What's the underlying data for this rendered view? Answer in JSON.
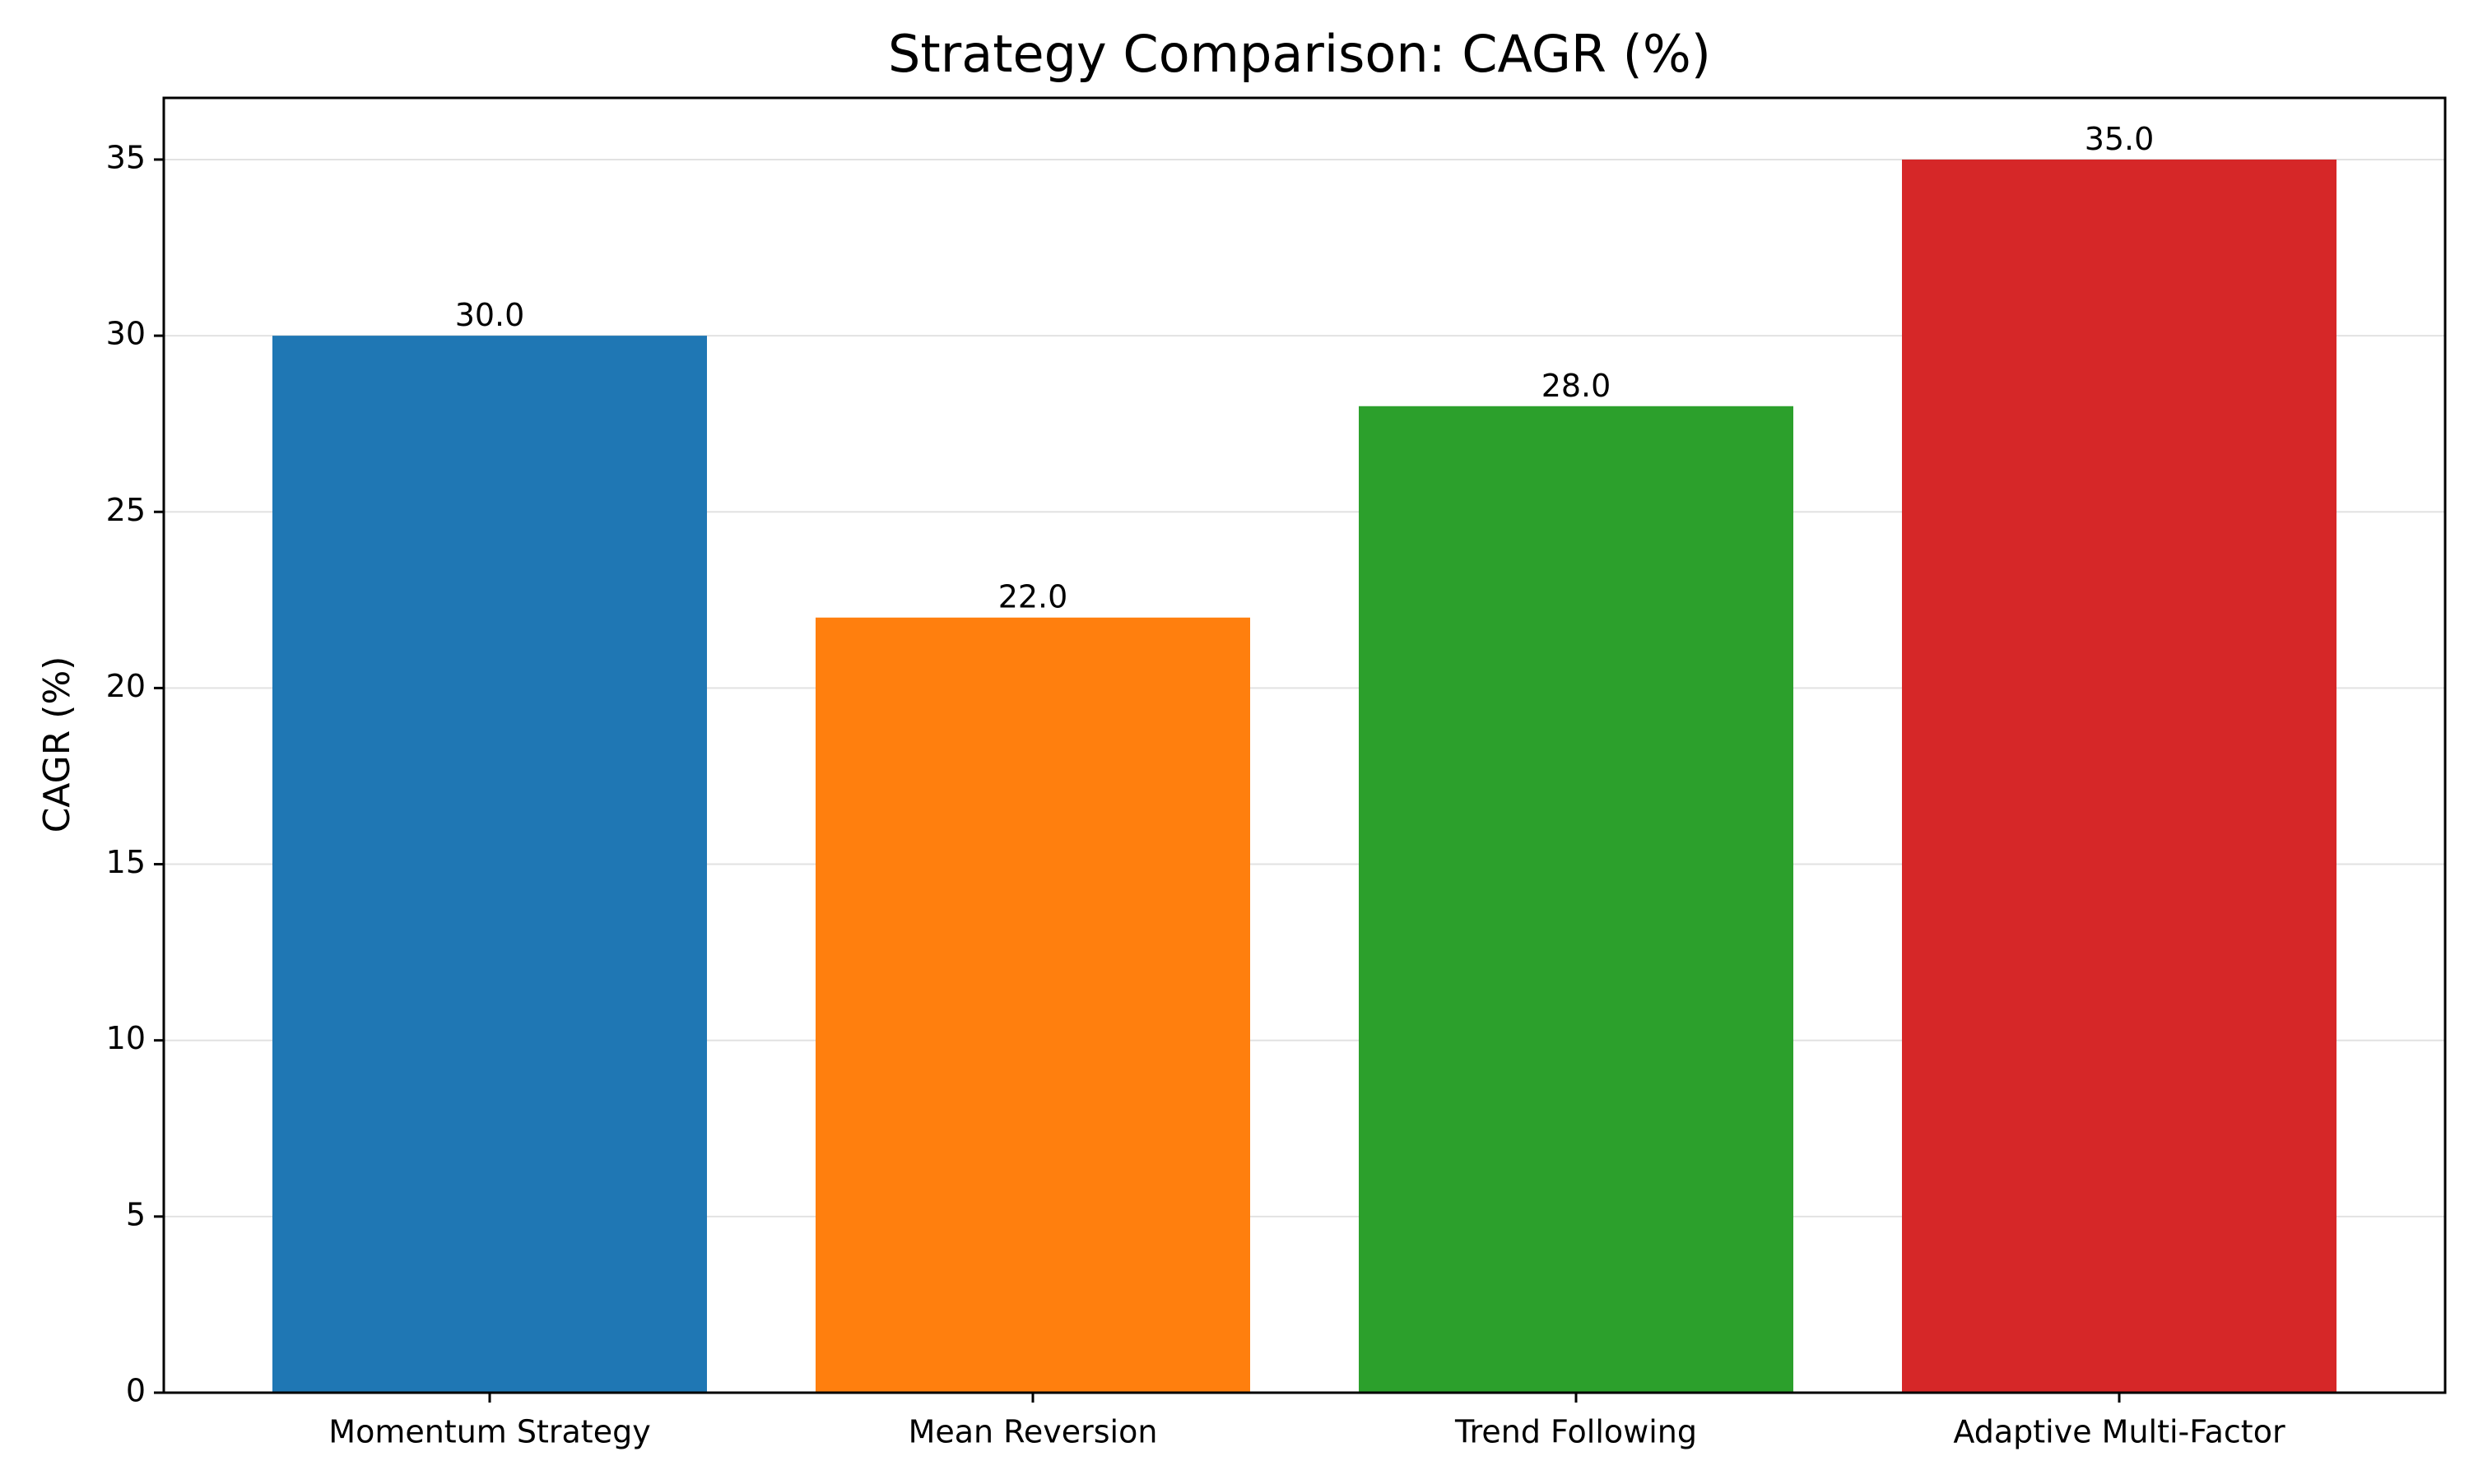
{
  "chart_data": {
    "type": "bar",
    "title": "Strategy Comparison: CAGR (%)",
    "xlabel": "",
    "ylabel": "CAGR (%)",
    "categories": [
      "Momentum Strategy",
      "Mean Reversion",
      "Trend Following",
      "Adaptive Multi-Factor"
    ],
    "values": [
      30.0,
      22.0,
      28.0,
      35.0
    ],
    "value_labels": [
      "30.0",
      "22.0",
      "28.0",
      "35.0"
    ],
    "colors": [
      "#1f77b4",
      "#ff7f0e",
      "#2ca02c",
      "#d62728"
    ],
    "ylim": [
      0,
      36.75
    ],
    "yticks": [
      0,
      5,
      10,
      15,
      20,
      25,
      30,
      35
    ],
    "grid": "y",
    "legend": "none"
  }
}
